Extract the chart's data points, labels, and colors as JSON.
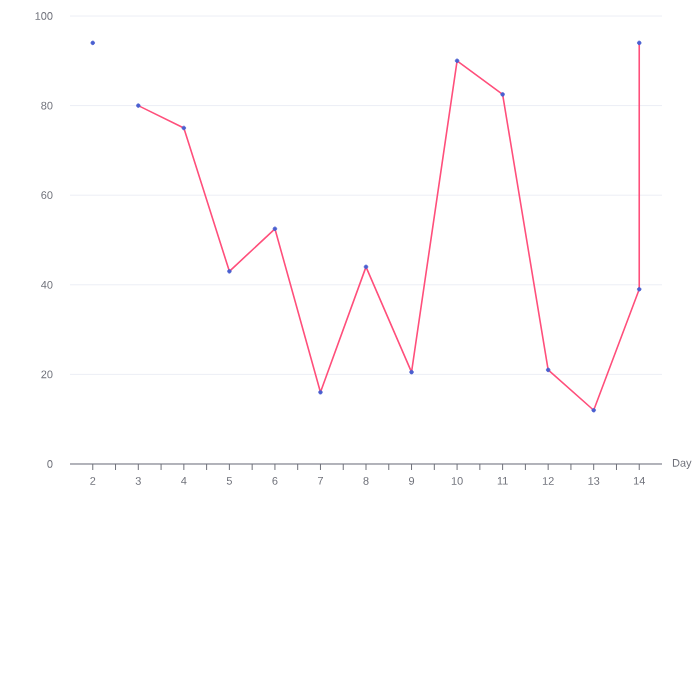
{
  "chart_data": {
    "type": "line",
    "xlabel": "Day",
    "series": [
      {
        "color": "#ff4f7b",
        "x": [
          2
        ],
        "values": [
          94
        ],
        "colors": [
          "#4a5fd0"
        ]
      },
      {
        "color": "#ff4f7b",
        "x": [
          3,
          4,
          5,
          6,
          7,
          8,
          9,
          10,
          11,
          12,
          13,
          14,
          14
        ],
        "values": [
          80,
          75,
          43,
          52.5,
          16,
          44,
          20.5,
          90,
          82.5,
          21,
          12,
          39,
          94
        ],
        "colors": [
          "#4a5fd0",
          "#4a5fd0",
          "#4a5fd0",
          "#4a5fd0",
          "#4a5fd0",
          "#4a5fd0",
          "#4a5fd0",
          "#4a5fd0",
          "#4a5fd0",
          "#4a5fd0",
          "#4a5fd0",
          "#4a5fd0",
          "#4a5fd0"
        ]
      }
    ],
    "xlim": [
      1.5,
      14.5
    ],
    "xticks": [
      2,
      3,
      4,
      5,
      6,
      7,
      8,
      9,
      10,
      11,
      12,
      13,
      14
    ],
    "ylim": [
      0,
      100
    ],
    "yticks": [
      0,
      20,
      40,
      60,
      80,
      100
    ],
    "grid": "y",
    "marker": "circle",
    "line_style": "solid"
  }
}
